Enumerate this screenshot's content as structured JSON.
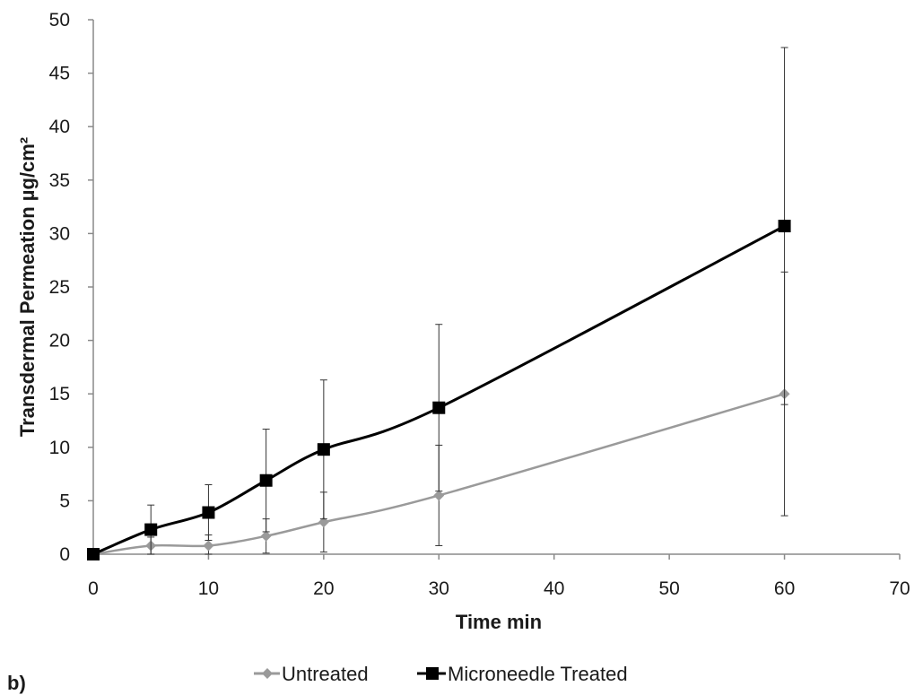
{
  "chart_data": {
    "type": "line",
    "panel_label": "b)",
    "xlabel": "Time min",
    "ylabel": "Transdermal Permeation µg/cm²",
    "xlim": [
      0,
      70
    ],
    "ylim": [
      0,
      50
    ],
    "x_ticks": [
      0,
      10,
      20,
      30,
      40,
      50,
      60,
      70
    ],
    "y_ticks": [
      0,
      5,
      10,
      15,
      20,
      25,
      30,
      35,
      40,
      45,
      50
    ],
    "grid": false,
    "legend_position": "bottom",
    "series": [
      {
        "name": "Untreated",
        "color": "#9a9a9a",
        "marker": "diamond",
        "x": [
          0,
          5,
          10,
          15,
          20,
          30,
          60
        ],
        "y": [
          0,
          0.8,
          0.8,
          1.7,
          3.0,
          5.5,
          15.0
        ],
        "err": [
          0,
          0.8,
          1.0,
          1.6,
          2.8,
          4.7,
          11.4
        ]
      },
      {
        "name": "Microneedle Treated",
        "color": "#000000",
        "marker": "square",
        "x": [
          0,
          5,
          10,
          15,
          20,
          30,
          60
        ],
        "y": [
          0,
          2.3,
          3.9,
          6.9,
          9.8,
          13.7,
          30.7
        ],
        "err": [
          0,
          2.3,
          2.6,
          4.8,
          6.5,
          7.8,
          16.7
        ]
      }
    ]
  }
}
